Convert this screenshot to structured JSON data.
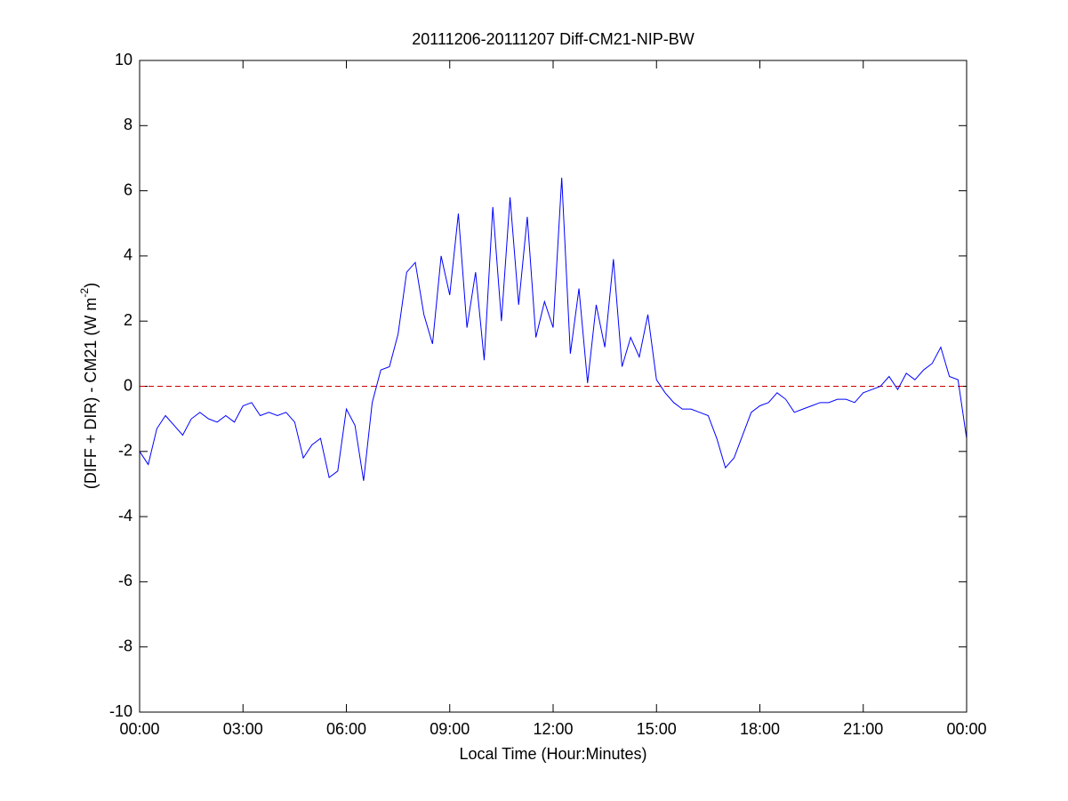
{
  "chart_data": {
    "type": "line",
    "title": "20111206-20111207 Diff-CM21-NIP-BW",
    "xlabel": "Local Time (Hour:Minutes)",
    "ylabel": {
      "main": "(DIFF + DIR) - CM21 (W m",
      "sup": "-2",
      "end": ")"
    },
    "x": [
      0,
      0.25,
      0.5,
      0.75,
      1,
      1.25,
      1.5,
      1.75,
      2,
      2.25,
      2.5,
      2.75,
      3,
      3.25,
      3.5,
      3.75,
      4,
      4.25,
      4.5,
      4.75,
      5,
      5.25,
      5.5,
      5.75,
      6,
      6.25,
      6.5,
      6.75,
      7,
      7.25,
      7.5,
      7.75,
      8,
      8.25,
      8.5,
      8.75,
      9,
      9.25,
      9.5,
      9.75,
      10,
      10.25,
      10.5,
      10.75,
      11,
      11.25,
      11.5,
      11.75,
      12,
      12.25,
      12.5,
      12.75,
      13,
      13.25,
      13.5,
      13.75,
      14,
      14.25,
      14.5,
      14.75,
      15,
      15.25,
      15.5,
      15.75,
      16,
      16.25,
      16.5,
      16.75,
      17,
      17.25,
      17.5,
      17.75,
      18,
      18.25,
      18.5,
      18.75,
      19,
      19.25,
      19.5,
      19.75,
      20,
      20.25,
      20.5,
      20.75,
      21,
      21.25,
      21.5,
      21.75,
      22,
      22.25,
      22.5,
      22.75,
      23,
      23.25,
      23.5,
      23.75,
      24
    ],
    "series": [
      {
        "color": "#0000ff",
        "values": [
          -2.0,
          -2.4,
          -1.3,
          -0.9,
          -1.2,
          -1.5,
          -1.0,
          -0.8,
          -1.0,
          -1.1,
          -0.9,
          -1.1,
          -0.6,
          -0.5,
          -0.9,
          -0.8,
          -0.9,
          -0.8,
          -1.1,
          -2.2,
          -1.8,
          -1.6,
          -2.8,
          -2.6,
          -0.7,
          -1.2,
          -2.9,
          -0.5,
          0.5,
          0.6,
          1.6,
          3.5,
          3.8,
          2.2,
          1.3,
          4.0,
          2.8,
          5.3,
          1.8,
          3.5,
          0.8,
          5.5,
          2.0,
          5.8,
          2.5,
          5.2,
          1.5,
          2.6,
          1.8,
          6.4,
          1.0,
          3.0,
          0.1,
          2.5,
          1.2,
          3.9,
          0.6,
          1.5,
          0.9,
          2.2,
          0.2,
          -0.2,
          -0.5,
          -0.7,
          -0.7,
          -0.8,
          -0.9,
          -1.6,
          -2.5,
          -2.2,
          -1.5,
          -0.8,
          -0.6,
          -0.5,
          -0.2,
          -0.4,
          -0.8,
          -0.7,
          -0.6,
          -0.5,
          -0.5,
          -0.4,
          -0.4,
          -0.5,
          -0.2,
          -0.1,
          0.0,
          0.3,
          -0.1,
          0.4,
          0.2,
          0.5,
          0.7,
          1.2,
          0.3,
          0.2,
          -1.6
        ]
      }
    ],
    "reference_line": {
      "value": 0,
      "color": "#cc0000"
    },
    "xlim": [
      0,
      24
    ],
    "xticks": [
      {
        "value": 0,
        "label": "00:00"
      },
      {
        "value": 3,
        "label": "03:00"
      },
      {
        "value": 6,
        "label": "06:00"
      },
      {
        "value": 9,
        "label": "09:00"
      },
      {
        "value": 12,
        "label": "12:00"
      },
      {
        "value": 15,
        "label": "15:00"
      },
      {
        "value": 18,
        "label": "18:00"
      },
      {
        "value": 21,
        "label": "21:00"
      },
      {
        "value": 24,
        "label": "00:00"
      }
    ],
    "ylim": [
      -10,
      10
    ],
    "yticks": [
      -10,
      -8,
      -6,
      -4,
      -2,
      0,
      2,
      4,
      6,
      8,
      10
    ],
    "grid": false
  }
}
